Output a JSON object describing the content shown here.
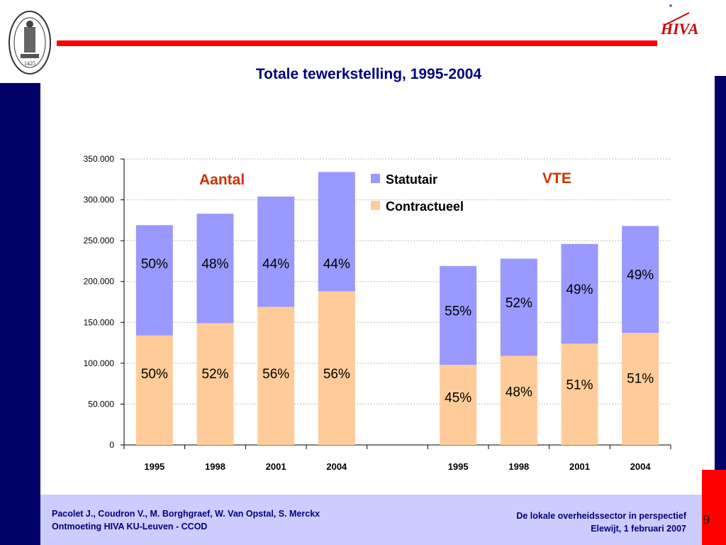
{
  "slide": {
    "title": "Totale tewerkstelling, 1995-2004",
    "footer_left_line1": "Pacolet J., Coudron V., M. Borghgraef, W. Van Opstal, S. Merckx",
    "footer_left_line2": "Ontmoeting HIVA KU-Leuven - CCOD",
    "footer_right_line1": "De lokale overheidssector in perspectief",
    "footer_right_line2": "Elewijt, 1 februari 2007",
    "page_number": "9",
    "seal_year": "1425",
    "logo_text": "HIVA"
  },
  "colors": {
    "statutair": "#9999ff",
    "contractueel": "#ffcc99",
    "annotation": "#cc3300",
    "navy": "#000066",
    "red": "#ff0000"
  },
  "chart_data": {
    "type": "bar",
    "stacked": true,
    "categories": [
      "1995",
      "1998",
      "2001",
      "2004",
      "",
      "1995",
      "1998",
      "2001",
      "2004"
    ],
    "series": [
      {
        "name": "Contractueel",
        "values": [
          134000,
          149000,
          169000,
          188000,
          null,
          98000,
          109000,
          124000,
          137000
        ],
        "labels": [
          "50%",
          "52%",
          "56%",
          "56%",
          "",
          "45%",
          "48%",
          "51%",
          "51%"
        ]
      },
      {
        "name": "Statutair",
        "values": [
          135000,
          134000,
          135000,
          146000,
          null,
          121000,
          119000,
          122000,
          131000
        ],
        "labels": [
          "50%",
          "48%",
          "44%",
          "44%",
          "",
          "55%",
          "52%",
          "49%",
          "49%"
        ]
      }
    ],
    "annotations": [
      "Aantal",
      "VTE"
    ],
    "yticks": [
      "0",
      "50.000",
      "100.000",
      "150.000",
      "200.000",
      "250.000",
      "300.000",
      "350.000"
    ],
    "ylim": [
      0,
      350000
    ],
    "grid": true,
    "legend": "top-center"
  }
}
